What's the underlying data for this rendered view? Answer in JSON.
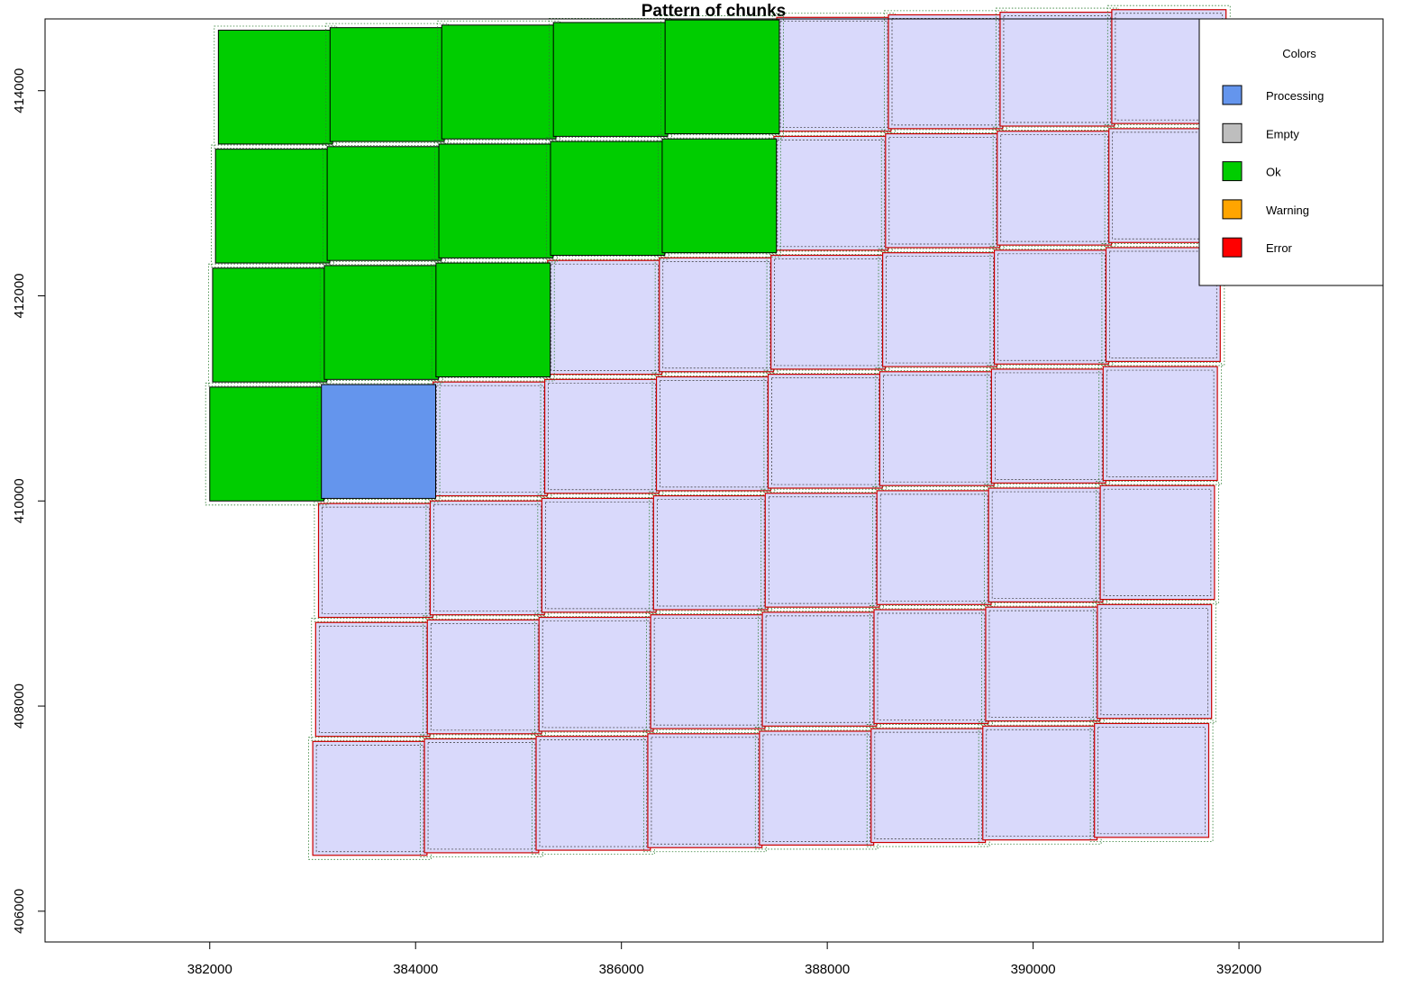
{
  "chart_data": {
    "type": "tile-grid",
    "title": "Pattern of chunks",
    "xlabel": "",
    "ylabel": "",
    "xlim": [
      380400,
      393400
    ],
    "ylim": [
      405700,
      414700
    ],
    "x_ticks": [
      "382000",
      "384000",
      "386000",
      "388000",
      "390000",
      "392000"
    ],
    "x_tick_values": [
      382000,
      384000,
      386000,
      388000,
      390000,
      392000
    ],
    "y_ticks": [
      "406000",
      "408000",
      "410000",
      "412000",
      "414000"
    ],
    "y_tick_values": [
      406000,
      408000,
      410000,
      412000,
      414000
    ],
    "grid": false,
    "legend": {
      "title": "Colors",
      "position": "top-right",
      "items": [
        {
          "label": "Processing",
          "color": "#6495ED"
        },
        {
          "label": "Empty",
          "color": "#BEBEBE"
        },
        {
          "label": "Ok",
          "color": "#00CD00"
        },
        {
          "label": "Warning",
          "color": "#FFA500"
        },
        {
          "label": "Error",
          "color": "#FF0000"
        }
      ]
    },
    "status_colors": {
      "ok": "#00CD00",
      "processing": "#6495ED",
      "pending": "#D9D9FB",
      "error_outline": "#CC0000"
    },
    "tile_size": 1110,
    "grid_origin": {
      "x": 382000,
      "y": 410000
    },
    "grid_step_x": {
      "dx": 1085,
      "dy": 25
    },
    "grid_step_y": {
      "dx": -28,
      "dy": -1160
    },
    "columns": 9,
    "row_status": [
      [
        "ok",
        "ok",
        "ok",
        "ok",
        "ok",
        "pending",
        "pending",
        "pending",
        "pending"
      ],
      [
        "ok",
        "ok",
        "ok",
        "ok",
        "ok",
        "pending",
        "pending",
        "pending",
        "pending"
      ],
      [
        "ok",
        "ok",
        "ok",
        "pending",
        "pending",
        "pending",
        "pending",
        "pending",
        "pending"
      ],
      [
        "ok",
        "processing",
        "pending",
        "pending",
        "pending",
        "pending",
        "pending",
        "pending",
        "pending"
      ],
      [
        null,
        "pending",
        "pending",
        "pending",
        "pending",
        "pending",
        "pending",
        "pending",
        "pending"
      ],
      [
        null,
        "pending",
        "pending",
        "pending",
        "pending",
        "pending",
        "pending",
        "pending",
        "pending"
      ],
      [
        null,
        "pending",
        "pending",
        "pending",
        "pending",
        "pending",
        "pending",
        "pending",
        "pending"
      ]
    ],
    "row_index_offset": -3
  }
}
